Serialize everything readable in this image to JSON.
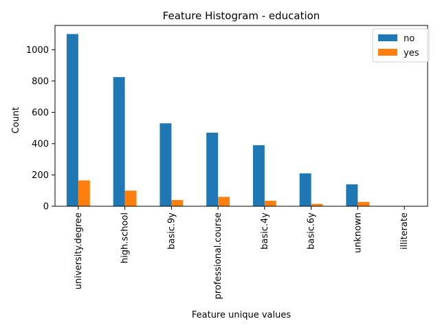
{
  "chart_data": {
    "type": "bar",
    "title": "Feature Histogram - education",
    "xlabel": "Feature unique values",
    "ylabel": "Count",
    "categories": [
      "university.degree",
      "high.school",
      "basic.9y",
      "professional.course",
      "basic.4y",
      "basic.6y",
      "unknown",
      "illiterate"
    ],
    "series": [
      {
        "name": "no",
        "color": "#1f77b4",
        "values": [
          1100,
          825,
          530,
          470,
          390,
          210,
          140,
          1
        ]
      },
      {
        "name": "yes",
        "color": "#ff7f0e",
        "values": [
          165,
          100,
          40,
          60,
          35,
          15,
          28,
          0
        ]
      }
    ],
    "ylim": [
      0,
      1155
    ],
    "yticks": [
      0,
      200,
      400,
      600,
      800,
      1000
    ],
    "grid": false,
    "legend_position": "top-right"
  }
}
